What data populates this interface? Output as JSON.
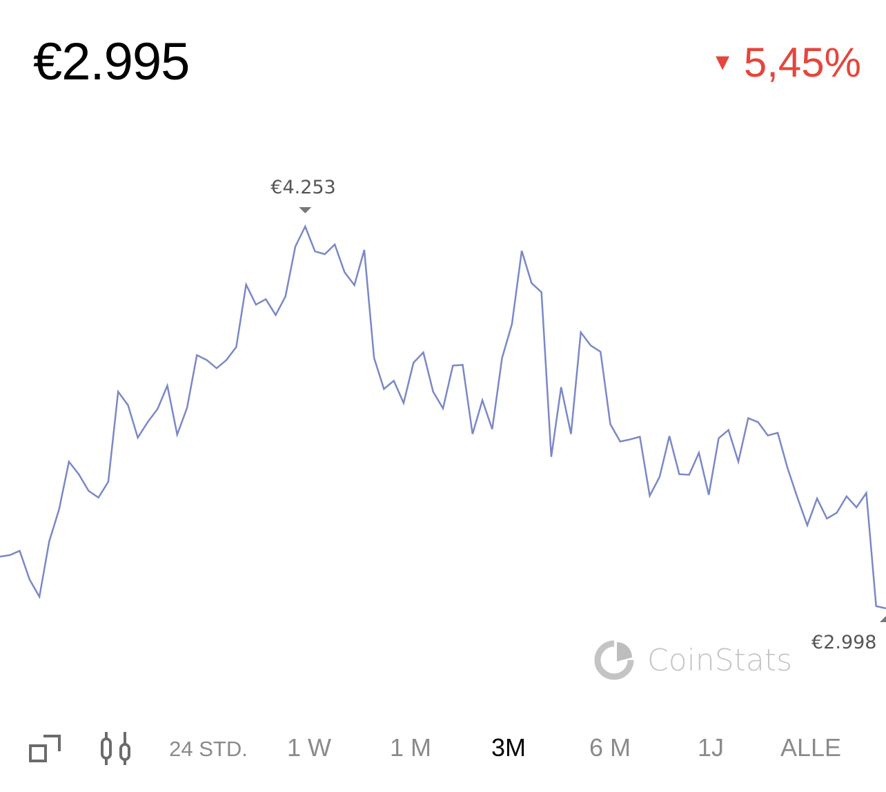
{
  "header": {
    "price": "€2.995",
    "change": "5,45%",
    "change_direction": "down",
    "change_color": "#e5463c"
  },
  "chart_data": {
    "type": "line",
    "title": "",
    "xlabel": "",
    "ylabel": "",
    "line_color": "#7b87c6",
    "ylim": [
      2.998,
      4.253
    ],
    "grid": false,
    "values": [
      3.168,
      3.173,
      3.187,
      3.093,
      3.036,
      3.218,
      3.323,
      3.48,
      3.439,
      3.384,
      3.362,
      3.414,
      3.71,
      3.666,
      3.559,
      3.61,
      3.653,
      3.73,
      3.569,
      3.657,
      3.83,
      3.814,
      3.787,
      3.814,
      3.857,
      4.062,
      3.996,
      4.014,
      3.962,
      4.023,
      4.187,
      4.253,
      4.171,
      4.162,
      4.194,
      4.103,
      4.06,
      4.176,
      3.821,
      3.719,
      3.746,
      3.673,
      3.805,
      3.839,
      3.71,
      3.655,
      3.796,
      3.798,
      3.571,
      3.682,
      3.587,
      3.821,
      3.932,
      4.173,
      4.067,
      4.037,
      3.496,
      3.725,
      3.571,
      3.905,
      3.862,
      3.841,
      3.603,
      3.546,
      3.553,
      3.562,
      3.368,
      3.43,
      3.564,
      3.439,
      3.437,
      3.509,
      3.371,
      3.557,
      3.584,
      3.48,
      3.623,
      3.61,
      3.566,
      3.575,
      3.459,
      3.362,
      3.271,
      3.359,
      3.293,
      3.312,
      3.366,
      3.33,
      3.377,
      3.005,
      2.998
    ],
    "annotations": {
      "max_label": "€4.253",
      "min_label": "€2.998"
    }
  },
  "watermark": {
    "brand": "CoinStats"
  },
  "toolbar": {
    "icons": [
      "expand-icon",
      "candlestick-icon"
    ],
    "ranges": [
      {
        "label": "24 STD.",
        "selected": false
      },
      {
        "label": "1 W",
        "selected": false
      },
      {
        "label": "1 M",
        "selected": false
      },
      {
        "label": "3M",
        "selected": true
      },
      {
        "label": "6 M",
        "selected": false
      },
      {
        "label": "1J",
        "selected": false
      },
      {
        "label": "ALLE",
        "selected": false
      }
    ]
  }
}
